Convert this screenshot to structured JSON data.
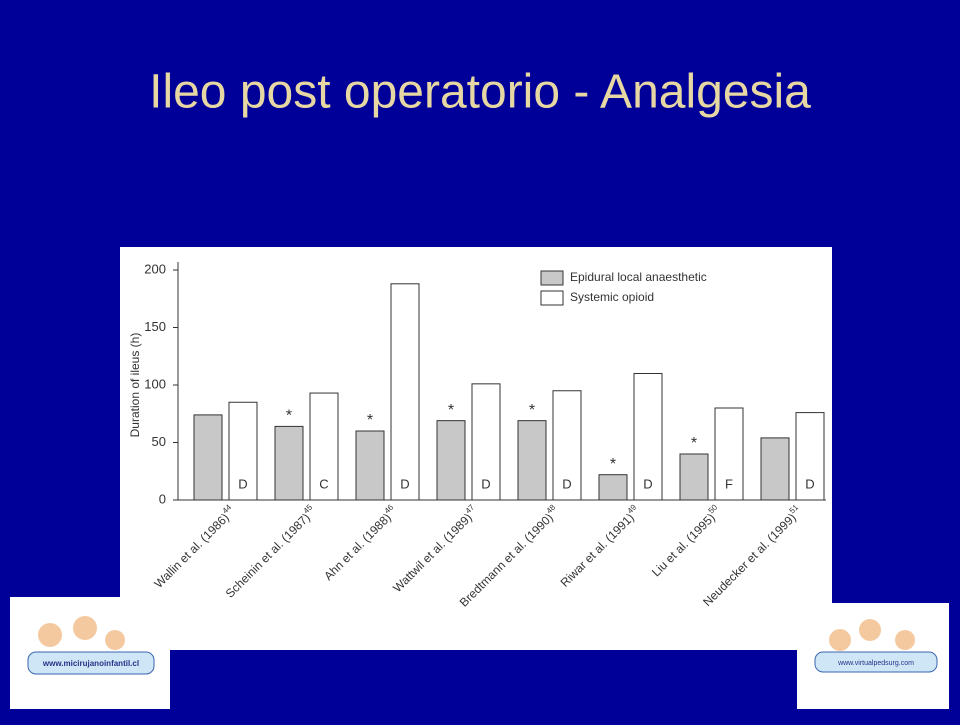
{
  "slide": {
    "title": "Ileo post operatorio - Analgesia"
  },
  "logos": [
    "www.micirujanoinfantil.cl",
    "www.virtualpedsurg.com"
  ],
  "chart_data": {
    "type": "bar",
    "y_label": "Duration of ileus (h)",
    "categories": [
      "Wallin et al. (1986)",
      "Scheinin et al. (1987)",
      "Ahn et al. (1988)",
      "Wattwil et al. (1989)",
      "Bredtmann et al. (1990)",
      "Riwar et al. (1991)",
      "Liu et al. (1995)",
      "Neudecker et al. (1999)"
    ],
    "category_refs": [
      "44",
      "45",
      "46",
      "47",
      "48",
      "49",
      "50",
      "51"
    ],
    "series": [
      {
        "name": "Epidural local anaesthetic",
        "color": "#c8c8c8",
        "values": [
          74,
          64,
          60,
          69,
          69,
          22,
          40,
          54
        ],
        "markers": [
          null,
          "*",
          "*",
          "*",
          "*",
          "*",
          "*",
          null
        ]
      },
      {
        "name": "Systemic opioid",
        "color": "#ffffff",
        "values": [
          85,
          93,
          188,
          101,
          95,
          110,
          80,
          76
        ],
        "markers": [
          "D",
          "C",
          "D",
          "D",
          "D",
          "D",
          "F",
          "D"
        ]
      }
    ],
    "ylim": [
      0,
      200
    ],
    "yticks": [
      0,
      50,
      100,
      150,
      200
    ],
    "grid": false,
    "legend": "top-right"
  }
}
